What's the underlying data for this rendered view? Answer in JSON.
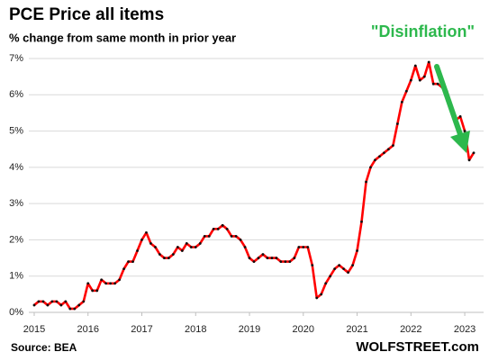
{
  "chart_data": {
    "type": "line",
    "title": "PCE Price all items",
    "subtitle": "% change from same month in prior year",
    "annotation": "\"Disinflation\"",
    "source": "Source: BEA",
    "credit": "WOLFSTREET.com",
    "x": [
      2015,
      2015.083,
      2015.167,
      2015.25,
      2015.333,
      2015.417,
      2015.5,
      2015.583,
      2015.667,
      2015.75,
      2015.833,
      2015.917,
      2016,
      2016.083,
      2016.167,
      2016.25,
      2016.333,
      2016.417,
      2016.5,
      2016.583,
      2016.667,
      2016.75,
      2016.833,
      2016.917,
      2017,
      2017.083,
      2017.167,
      2017.25,
      2017.333,
      2017.417,
      2017.5,
      2017.583,
      2017.667,
      2017.75,
      2017.833,
      2017.917,
      2018,
      2018.083,
      2018.167,
      2018.25,
      2018.333,
      2018.417,
      2018.5,
      2018.583,
      2018.667,
      2018.75,
      2018.833,
      2018.917,
      2019,
      2019.083,
      2019.167,
      2019.25,
      2019.333,
      2019.417,
      2019.5,
      2019.583,
      2019.667,
      2019.75,
      2019.833,
      2019.917,
      2020,
      2020.083,
      2020.167,
      2020.25,
      2020.333,
      2020.417,
      2020.5,
      2020.583,
      2020.667,
      2020.75,
      2020.833,
      2020.917,
      2021,
      2021.083,
      2021.167,
      2021.25,
      2021.333,
      2021.417,
      2021.5,
      2021.583,
      2021.667,
      2021.75,
      2021.833,
      2021.917,
      2022,
      2022.083,
      2022.167,
      2022.25,
      2022.333,
      2022.417,
      2022.5,
      2022.583,
      2022.667,
      2022.75,
      2022.833,
      2022.917,
      2023,
      2023.083,
      2023.167
    ],
    "series": [
      {
        "name": "PCE Price all items",
        "color": "#ff0000",
        "marker_color": "#111111",
        "values": [
          0.2,
          0.3,
          0.3,
          0.2,
          0.3,
          0.3,
          0.2,
          0.3,
          0.1,
          0.1,
          0.2,
          0.3,
          0.8,
          0.6,
          0.6,
          0.9,
          0.8,
          0.8,
          0.8,
          0.9,
          1.2,
          1.4,
          1.4,
          1.7,
          2.0,
          2.2,
          1.9,
          1.8,
          1.6,
          1.5,
          1.5,
          1.6,
          1.8,
          1.7,
          1.9,
          1.8,
          1.8,
          1.9,
          2.1,
          2.1,
          2.3,
          2.3,
          2.4,
          2.3,
          2.1,
          2.1,
          2.0,
          1.8,
          1.5,
          1.4,
          1.5,
          1.6,
          1.5,
          1.5,
          1.5,
          1.4,
          1.4,
          1.4,
          1.5,
          1.8,
          1.8,
          1.8,
          1.3,
          0.4,
          0.5,
          0.8,
          1.0,
          1.2,
          1.3,
          1.2,
          1.1,
          1.3,
          1.7,
          2.5,
          3.6,
          4.0,
          4.2,
          4.3,
          4.4,
          4.5,
          4.6,
          5.2,
          5.8,
          6.1,
          6.4,
          6.8,
          6.4,
          6.5,
          6.9,
          6.3,
          6.3,
          6.2,
          6.1,
          5.7,
          5.3,
          5.4,
          5.0,
          4.2,
          4.4
        ]
      }
    ],
    "xlim": [
      2014.9,
      2023.35
    ],
    "xticks": [
      2015,
      2016,
      2017,
      2018,
      2019,
      2020,
      2021,
      2022,
      2023
    ],
    "ylim": [
      0,
      7
    ],
    "yticks": [
      {
        "value": 0,
        "label": "0%"
      },
      {
        "value": 1,
        "label": "1%"
      },
      {
        "value": 2,
        "label": "2%"
      },
      {
        "value": 3,
        "label": "3%"
      },
      {
        "value": 4,
        "label": "4%"
      },
      {
        "value": 5,
        "label": "5%"
      },
      {
        "value": 6,
        "label": "6%"
      },
      {
        "value": 7,
        "label": "7%"
      }
    ],
    "grid": true
  }
}
